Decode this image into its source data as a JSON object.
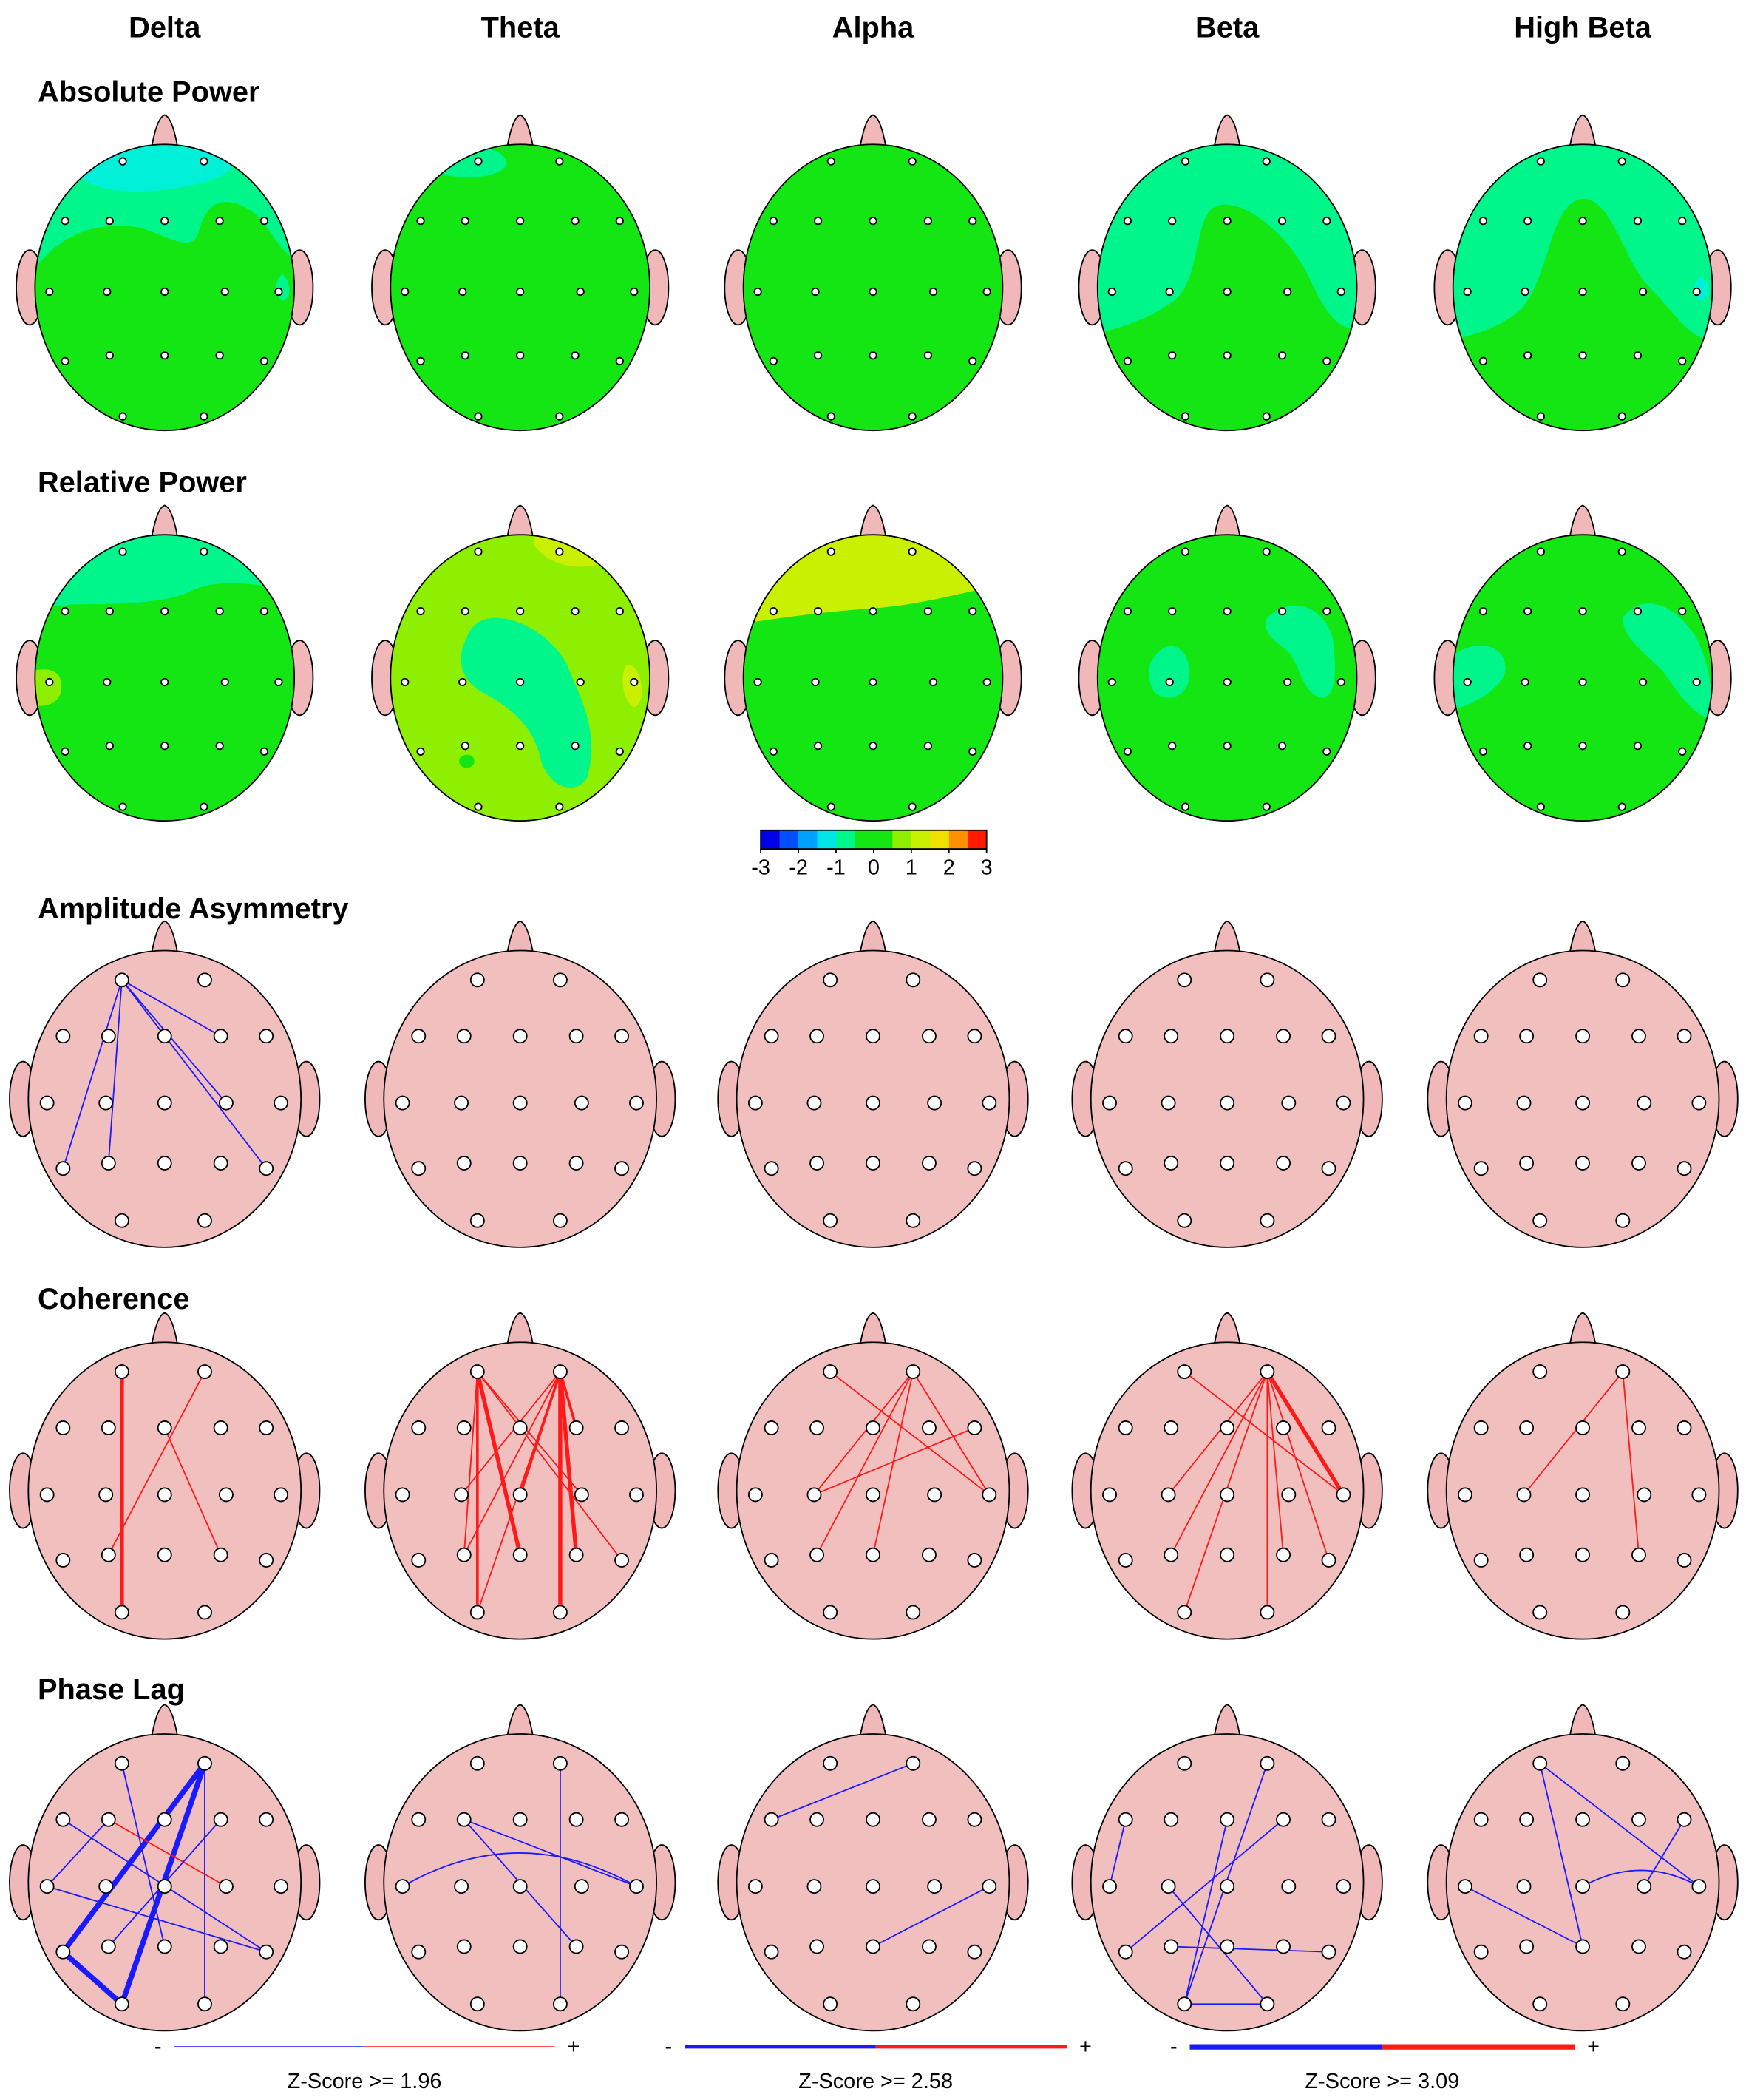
{
  "columns": [
    "Delta",
    "Theta",
    "Alpha",
    "Beta",
    "High Beta"
  ],
  "rows": [
    "Absolute Power",
    "Relative Power",
    "Amplitude Asymmetry",
    "Coherence",
    "Phase Lag"
  ],
  "colorbar": {
    "ticks": [
      -3,
      -2,
      -1,
      0,
      1,
      2,
      3
    ]
  },
  "legend": [
    {
      "minus": "-",
      "plus": "+",
      "label": "Z-Score >= 1.96"
    },
    {
      "minus": "-",
      "plus": "+",
      "label": "Z-Score >= 2.58"
    },
    {
      "minus": "-",
      "plus": "+",
      "label": "Z-Score >= 3.09"
    }
  ]
}
